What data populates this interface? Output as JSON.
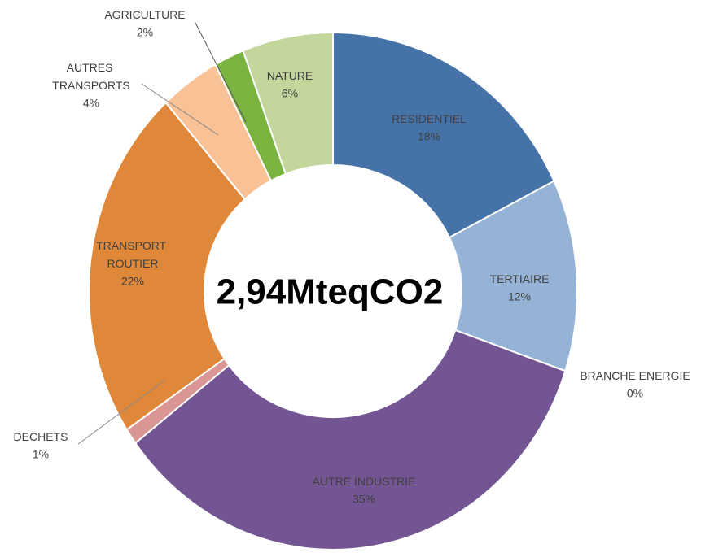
{
  "chart_data": {
    "type": "donut",
    "center_label": "2,94MteqCO2",
    "categories": [
      "RESIDENTIEL",
      "TERTIAIRE",
      "BRANCHE ENERGIE",
      "AUTRE INDUSTRIE",
      "DECHETS",
      "TRANSPORT ROUTIER",
      "AUTRES TRANSPORTS",
      "AGRICULTURE",
      "NATURE"
    ],
    "values": [
      18,
      12,
      0,
      35,
      1,
      22,
      4,
      2,
      6
    ],
    "value_labels": [
      "18%",
      "12%",
      "0%",
      "35%",
      "1%",
      "22%",
      "4%",
      "2%",
      "6%"
    ],
    "colors": [
      "#4572a7",
      "#95b3d7",
      "#2f4f7f",
      "#735594",
      "#d99694",
      "#e0883a",
      "#f9c196",
      "#7ab340",
      "#c3d69b"
    ]
  }
}
